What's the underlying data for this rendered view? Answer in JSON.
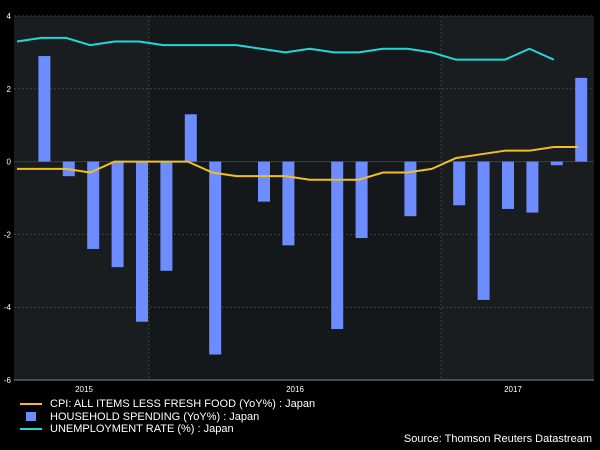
{
  "colors": {
    "background": "#000000",
    "plot_bg": "#1a1d20",
    "plot_bg_alt": "#15181b",
    "grid": "#3c4146",
    "bar": "#6c8cff",
    "cpi": "#f0c020",
    "unemployment": "#20d8d8",
    "text": "#ffffff"
  },
  "chart_data": {
    "type": "bar",
    "title": "",
    "xlabel": "",
    "ylabel": "",
    "ylim": [
      -6,
      4
    ],
    "yticks": [
      "4",
      "2",
      "0",
      "-2",
      "-4",
      "-6"
    ],
    "ytick_values": [
      4,
      2,
      0,
      -2,
      -4,
      -6
    ],
    "year_labels": [
      "2015",
      "2016",
      "2017"
    ],
    "period": "monthly, Dec 2014 - Mar 2017",
    "series": [
      {
        "name": "CPI: ALL ITEMS LESS FRESH FOOD (YoY%) : Japan",
        "kind": "line",
        "values": [
          -0.2,
          -0.2,
          -0.2,
          -0.3,
          0.0,
          0.0,
          0.0,
          0.0,
          -0.3,
          -0.4,
          -0.4,
          -0.4,
          -0.5,
          -0.5,
          -0.5,
          -0.3,
          -0.3,
          -0.2,
          0.1,
          0.2,
          0.3,
          0.3,
          0.4,
          0.4
        ]
      },
      {
        "name": "HOUSEHOLD SPENDING (YoY%) : Japan",
        "kind": "bar",
        "values": [
          2.9,
          -0.4,
          -2.4,
          -2.9,
          -4.4,
          -3.0,
          1.3,
          -5.3,
          -1.1,
          -2.3,
          -4.6,
          -2.1,
          -1.5,
          -1.2,
          -3.8,
          -1.3,
          -1.4,
          -0.1,
          2.3
        ]
      },
      {
        "name": "UNEMPLOYMENT RATE (%) : Japan",
        "kind": "line",
        "values": [
          3.3,
          3.4,
          3.4,
          3.2,
          3.3,
          3.3,
          3.2,
          3.2,
          3.2,
          3.2,
          3.1,
          3.0,
          3.1,
          3.0,
          3.0,
          3.1,
          3.1,
          3.0,
          2.8,
          2.8,
          2.8,
          3.1,
          2.8
        ]
      }
    ]
  },
  "legend": {
    "cpi": "CPI: ALL ITEMS LESS FRESH FOOD (YoY%) : Japan",
    "spending": "HOUSEHOLD SPENDING (YoY%) : Japan",
    "unemployment": "UNEMPLOYMENT RATE (%) : Japan"
  },
  "source": "Source: Thomson Reuters Datastream"
}
